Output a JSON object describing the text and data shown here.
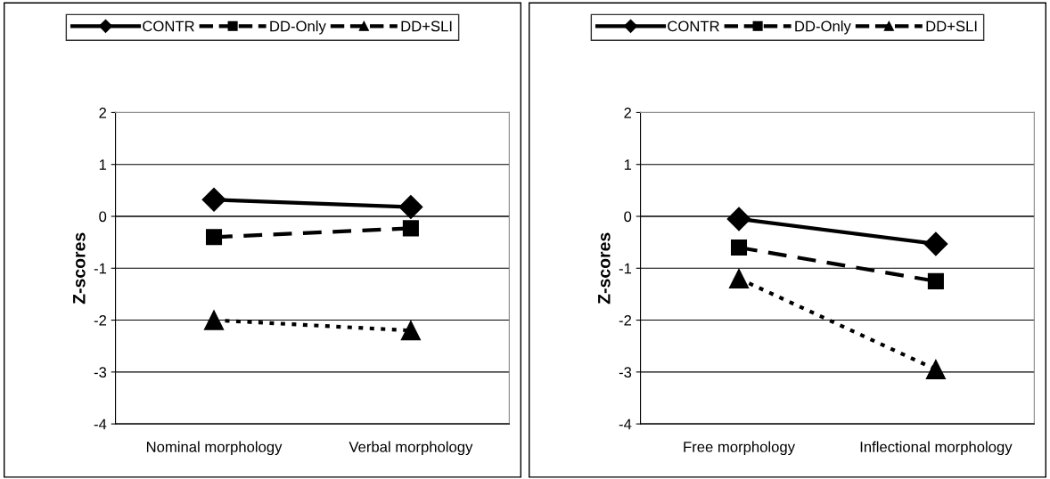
{
  "chart_data": [
    {
      "type": "line",
      "ylabel": "Z-scores",
      "categories": [
        "Nominal morphology",
        "Verbal morphology"
      ],
      "ylim": [
        -4,
        2
      ],
      "yticks": [
        -4,
        -3,
        -2,
        -1,
        0,
        1,
        2
      ],
      "grid": "y",
      "legend": "top",
      "series": [
        {
          "name": "CONTR",
          "color": "#000000",
          "values": [
            0.32,
            0.18
          ],
          "marker": "diamond",
          "line_style": "solid"
        },
        {
          "name": "DD-Only",
          "color": "#000000",
          "values": [
            -0.4,
            -0.23
          ],
          "marker": "square",
          "line_style": "dashed"
        },
        {
          "name": "DD+SLI",
          "color": "#000000",
          "values": [
            -2.0,
            -2.2
          ],
          "marker": "triangle",
          "line_style": "dotted"
        }
      ]
    },
    {
      "type": "line",
      "ylabel": "Z-scores",
      "categories": [
        "Free morphology",
        "Inflectional morphology"
      ],
      "ylim": [
        -4,
        2
      ],
      "yticks": [
        -4,
        -3,
        -2,
        -1,
        0,
        1,
        2
      ],
      "grid": "y",
      "legend": "top",
      "series": [
        {
          "name": "CONTR",
          "color": "#000000",
          "values": [
            -0.05,
            -0.53
          ],
          "marker": "diamond",
          "line_style": "solid"
        },
        {
          "name": "DD-Only",
          "color": "#000000",
          "values": [
            -0.6,
            -1.25
          ],
          "marker": "square",
          "line_style": "dashed"
        },
        {
          "name": "DD+SLI",
          "color": "#000000",
          "values": [
            -1.2,
            -2.95
          ],
          "marker": "triangle",
          "line_style": "dotted"
        }
      ]
    }
  ]
}
